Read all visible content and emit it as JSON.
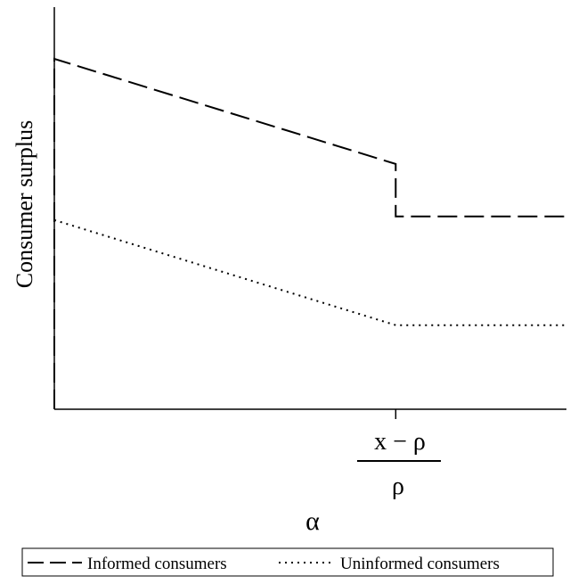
{
  "chart_data": {
    "type": "line",
    "title": "",
    "xlabel": "α",
    "ylabel": "Consumer surplus",
    "x_tick": {
      "numerator": "x − ρ",
      "denominator": "ρ",
      "x": 1
    },
    "xlim": [
      0,
      1.5
    ],
    "ylim": [
      0,
      100
    ],
    "grid": false,
    "legend": {
      "placement": "bottom",
      "boxed": true
    },
    "series": [
      {
        "name": "Informed consumers",
        "style": "dashed",
        "color": "#000000",
        "points": [
          [
            0,
            0
          ],
          [
            0,
            100
          ],
          [
            1,
            70
          ],
          [
            1,
            55
          ],
          [
            1.5,
            55
          ]
        ]
      },
      {
        "name": "Uninformed consumers",
        "style": "dotted",
        "color": "#000000",
        "points": [
          [
            0,
            54
          ],
          [
            1,
            24
          ],
          [
            1.5,
            24
          ]
        ]
      }
    ]
  }
}
